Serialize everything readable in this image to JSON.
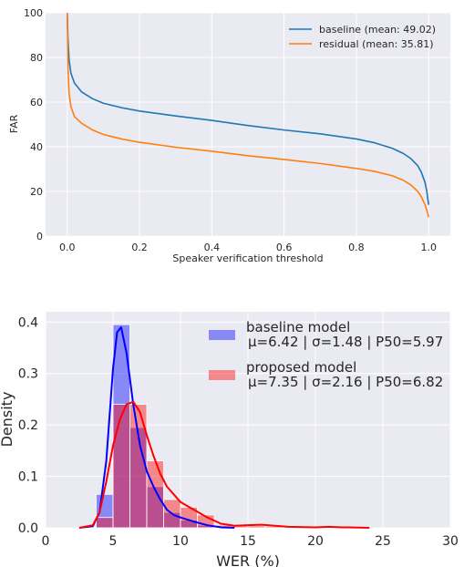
{
  "chart_data": [
    {
      "type": "line",
      "title": "",
      "xlabel": "Speaker verification threshold",
      "ylabel": "FAR",
      "xlim": [
        -0.06,
        1.06
      ],
      "ylim": [
        0,
        100
      ],
      "xticks": [
        "0.0",
        "0.2",
        "0.4",
        "0.6",
        "0.8",
        "1.0"
      ],
      "yticks": [
        "0",
        "20",
        "40",
        "60",
        "80",
        "100"
      ],
      "grid": true,
      "legend_position": "top-right",
      "series": [
        {
          "name": "baseline (mean: 49.02)",
          "color": "#1f77b4",
          "x": [
            0.0,
            0.002,
            0.005,
            0.01,
            0.02,
            0.04,
            0.07,
            0.1,
            0.15,
            0.2,
            0.3,
            0.4,
            0.5,
            0.6,
            0.7,
            0.8,
            0.85,
            0.9,
            0.93,
            0.95,
            0.97,
            0.98,
            0.99,
            0.995,
            1.0
          ],
          "y": [
            100,
            88,
            79,
            73,
            68.5,
            64.5,
            61.5,
            59.5,
            57.5,
            56.0,
            53.8,
            51.8,
            49.5,
            47.5,
            45.8,
            43.5,
            41.8,
            39.3,
            37.0,
            34.8,
            31.5,
            28.5,
            24.0,
            20.0,
            14.0
          ]
        },
        {
          "name": "residual (mean: 35.81)",
          "color": "#ff7f0e",
          "x": [
            0.0,
            0.002,
            0.005,
            0.01,
            0.02,
            0.04,
            0.07,
            0.1,
            0.15,
            0.2,
            0.3,
            0.4,
            0.5,
            0.6,
            0.7,
            0.8,
            0.85,
            0.9,
            0.93,
            0.95,
            0.97,
            0.98,
            0.99,
            0.995,
            1.0
          ],
          "y": [
            100,
            75,
            64,
            58,
            53.5,
            50.5,
            47.5,
            45.5,
            43.5,
            42.0,
            39.8,
            38.0,
            36.0,
            34.3,
            32.5,
            30.3,
            29.0,
            27.0,
            25.0,
            23.0,
            20.0,
            17.5,
            14.0,
            11.5,
            8.5
          ]
        }
      ]
    },
    {
      "type": "histogram",
      "title": "",
      "xlabel": "WER (%)",
      "ylabel": "Density",
      "xlim": [
        0,
        30
      ],
      "ylim": [
        0,
        0.42
      ],
      "xticks": [
        "0",
        "5",
        "10",
        "15",
        "20",
        "25",
        "30"
      ],
      "yticks": [
        "0.0",
        "0.1",
        "0.2",
        "0.3",
        "0.4"
      ],
      "grid": true,
      "legend_position": "top-right",
      "bin_edges": [
        2.5,
        3.75,
        5.0,
        6.25,
        7.5,
        8.75,
        10.0,
        11.25,
        12.5,
        13.75,
        15.0,
        16.25,
        17.5,
        18.75,
        20.0,
        21.25,
        22.5,
        23.75,
        25.0
      ],
      "series": [
        {
          "name": "baseline model",
          "stats_label": "μ=6.42 | σ=1.48 | P50=5.97",
          "color": "#0000ff",
          "hist_values": [
            0.0,
            0.065,
            0.395,
            0.195,
            0.08,
            0.03,
            0.015,
            0.005,
            0.002,
            0.0,
            0.0,
            0.0,
            0.0,
            0.0,
            0.0,
            0.0,
            0.0,
            0.0
          ],
          "kde_x": [
            2.5,
            3.5,
            4.0,
            4.5,
            5.0,
            5.3,
            5.6,
            6.0,
            6.5,
            7.0,
            7.5,
            8.0,
            8.5,
            9.0,
            9.5,
            10.0,
            11.0,
            12.0,
            13.0,
            14.0
          ],
          "kde_y": [
            0.0,
            0.003,
            0.03,
            0.13,
            0.31,
            0.38,
            0.39,
            0.34,
            0.24,
            0.16,
            0.11,
            0.08,
            0.055,
            0.035,
            0.025,
            0.02,
            0.012,
            0.005,
            0.001,
            0.0
          ]
        },
        {
          "name": "proposed model",
          "stats_label": "μ=7.35 | σ=2.16 | P50=6.82",
          "color": "#ff0000",
          "hist_values": [
            0.0,
            0.02,
            0.24,
            0.24,
            0.13,
            0.055,
            0.04,
            0.025,
            0.005,
            0.004,
            0.004,
            0.003,
            0.002,
            0.0,
            0.002,
            0.002,
            0.0,
            0.0
          ],
          "kde_x": [
            2.5,
            3.5,
            4.0,
            4.5,
            5.0,
            5.5,
            6.0,
            6.5,
            7.0,
            7.5,
            8.0,
            8.5,
            9.0,
            9.5,
            10.0,
            11.0,
            12.0,
            13.0,
            14.0,
            15.0,
            16.0,
            17.0,
            18.0,
            20.0,
            21.0,
            22.0,
            24.0
          ],
          "kde_y": [
            0.0,
            0.005,
            0.03,
            0.09,
            0.16,
            0.21,
            0.24,
            0.245,
            0.225,
            0.18,
            0.14,
            0.105,
            0.08,
            0.065,
            0.05,
            0.035,
            0.02,
            0.008,
            0.004,
            0.005,
            0.006,
            0.004,
            0.002,
            0.001,
            0.002,
            0.001,
            0.0
          ]
        }
      ]
    }
  ]
}
